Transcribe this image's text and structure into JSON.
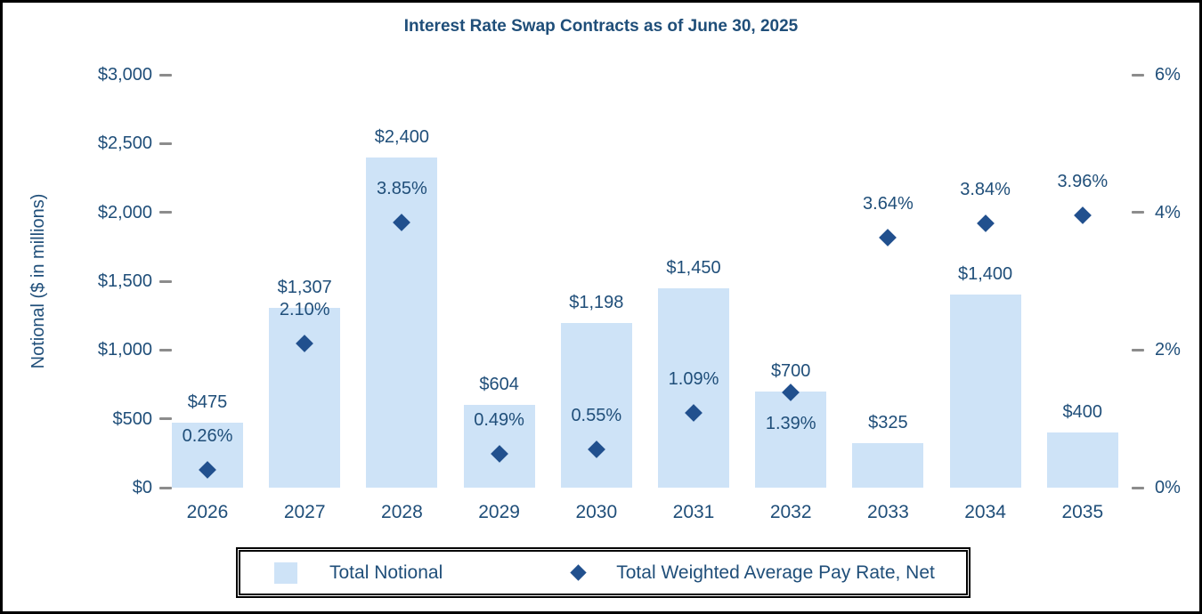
{
  "chart_data": {
    "type": "bar",
    "subtype": "combo-bar-with-diamond-scatter-dual-axis",
    "title": "Interest Rate Swap Contracts as of June 30, 2025",
    "categories": [
      "2026",
      "2027",
      "2028",
      "2029",
      "2030",
      "2031",
      "2032",
      "2033",
      "2034",
      "2035"
    ],
    "series": [
      {
        "name": "Total Notional",
        "type": "bar",
        "axis": "left",
        "values": [
          475,
          1307,
          2400,
          604,
          1198,
          1450,
          700,
          325,
          1400,
          400
        ],
        "data_labels": [
          "$475",
          "$1,307",
          "$2,400",
          "$604",
          "$1,198",
          "$1,450",
          "$700",
          "$325",
          "$1,400",
          "$400"
        ]
      },
      {
        "name": "Total Weighted Average Pay Rate, Net",
        "type": "scatter",
        "marker": "diamond",
        "axis": "right",
        "values": [
          0.26,
          2.1,
          3.85,
          0.49,
          0.55,
          1.09,
          1.39,
          3.64,
          3.84,
          3.96
        ],
        "data_labels": [
          "0.26%",
          "2.10%",
          "3.85%",
          "0.49%",
          "0.55%",
          "1.09%",
          "1.39%",
          "3.64%",
          "3.84%",
          "3.96%"
        ],
        "label_position": [
          "above",
          "above",
          "above",
          "above",
          "above",
          "above",
          "below",
          "above",
          "above",
          "above"
        ]
      }
    ],
    "left_axis": {
      "title": "Notional ($ in millions)",
      "min": 0,
      "max": 3000,
      "step": 500,
      "tick_labels": [
        "$3,000",
        "$2,500",
        "$2,000",
        "$1,500",
        "$1,000",
        "$500",
        "$0"
      ]
    },
    "right_axis": {
      "min": 0,
      "max": 6,
      "step": 2,
      "tick_labels": [
        "6%",
        "4%",
        "2%",
        "0%"
      ]
    },
    "legend": {
      "position": "bottom",
      "entries": [
        {
          "label": "Total Notional",
          "marker": "square"
        },
        {
          "label": "Total Weighted Average Pay Rate, Net",
          "marker": "diamond"
        }
      ]
    },
    "grid": false,
    "colors": {
      "text_navy": "#1F4E79",
      "bar_fill": "#CEE3F7",
      "marker_fill": "#21508E",
      "tick_gray": "#8C8C8C",
      "frame_black": "#000000"
    }
  }
}
